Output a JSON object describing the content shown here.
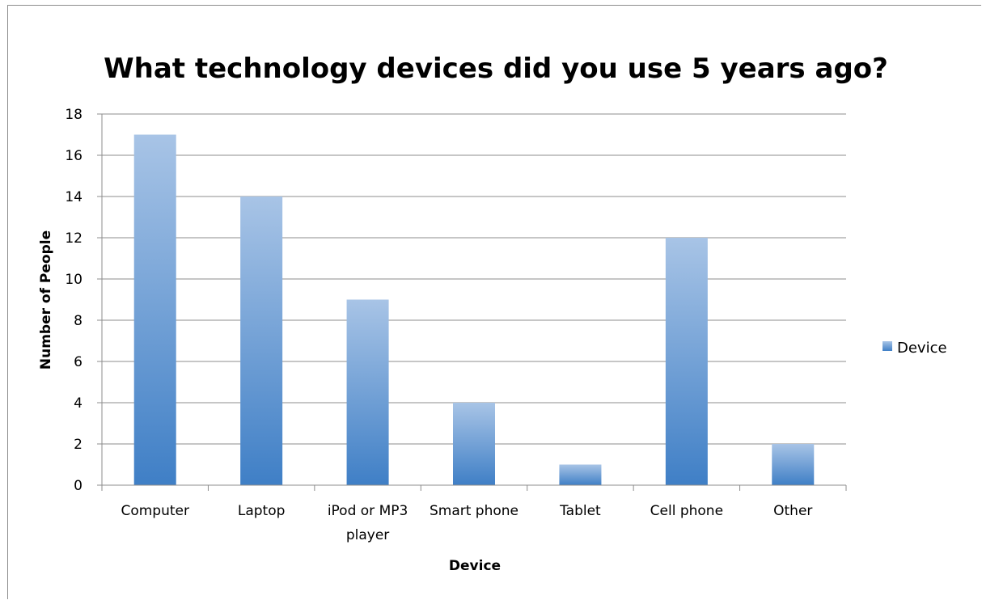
{
  "chart_data": {
    "type": "bar",
    "title": "What technology devices did you use 5 years ago?",
    "xlabel": "Device",
    "ylabel": "Number of People",
    "categories": [
      "Computer",
      "Laptop",
      "iPod or MP3 player",
      "Smart phone",
      "Tablet",
      "Cell phone",
      "Other"
    ],
    "category_lines": [
      [
        "Computer"
      ],
      [
        "Laptop"
      ],
      [
        "iPod or MP3",
        "player"
      ],
      [
        "Smart phone"
      ],
      [
        "Tablet"
      ],
      [
        "Cell phone"
      ],
      [
        "Other"
      ]
    ],
    "series": [
      {
        "name": "Device",
        "values": [
          17,
          14,
          9,
          4,
          1,
          12,
          2
        ]
      }
    ],
    "ylim": [
      0,
      18
    ],
    "yticks": [
      0,
      2,
      4,
      6,
      8,
      10,
      12,
      14,
      16,
      18
    ],
    "grid": true,
    "legend_position": "right",
    "colors": {
      "bar_top": "#a8c4e6",
      "bar_bottom": "#3f7fc6",
      "grid": "#8c8c8c"
    }
  }
}
